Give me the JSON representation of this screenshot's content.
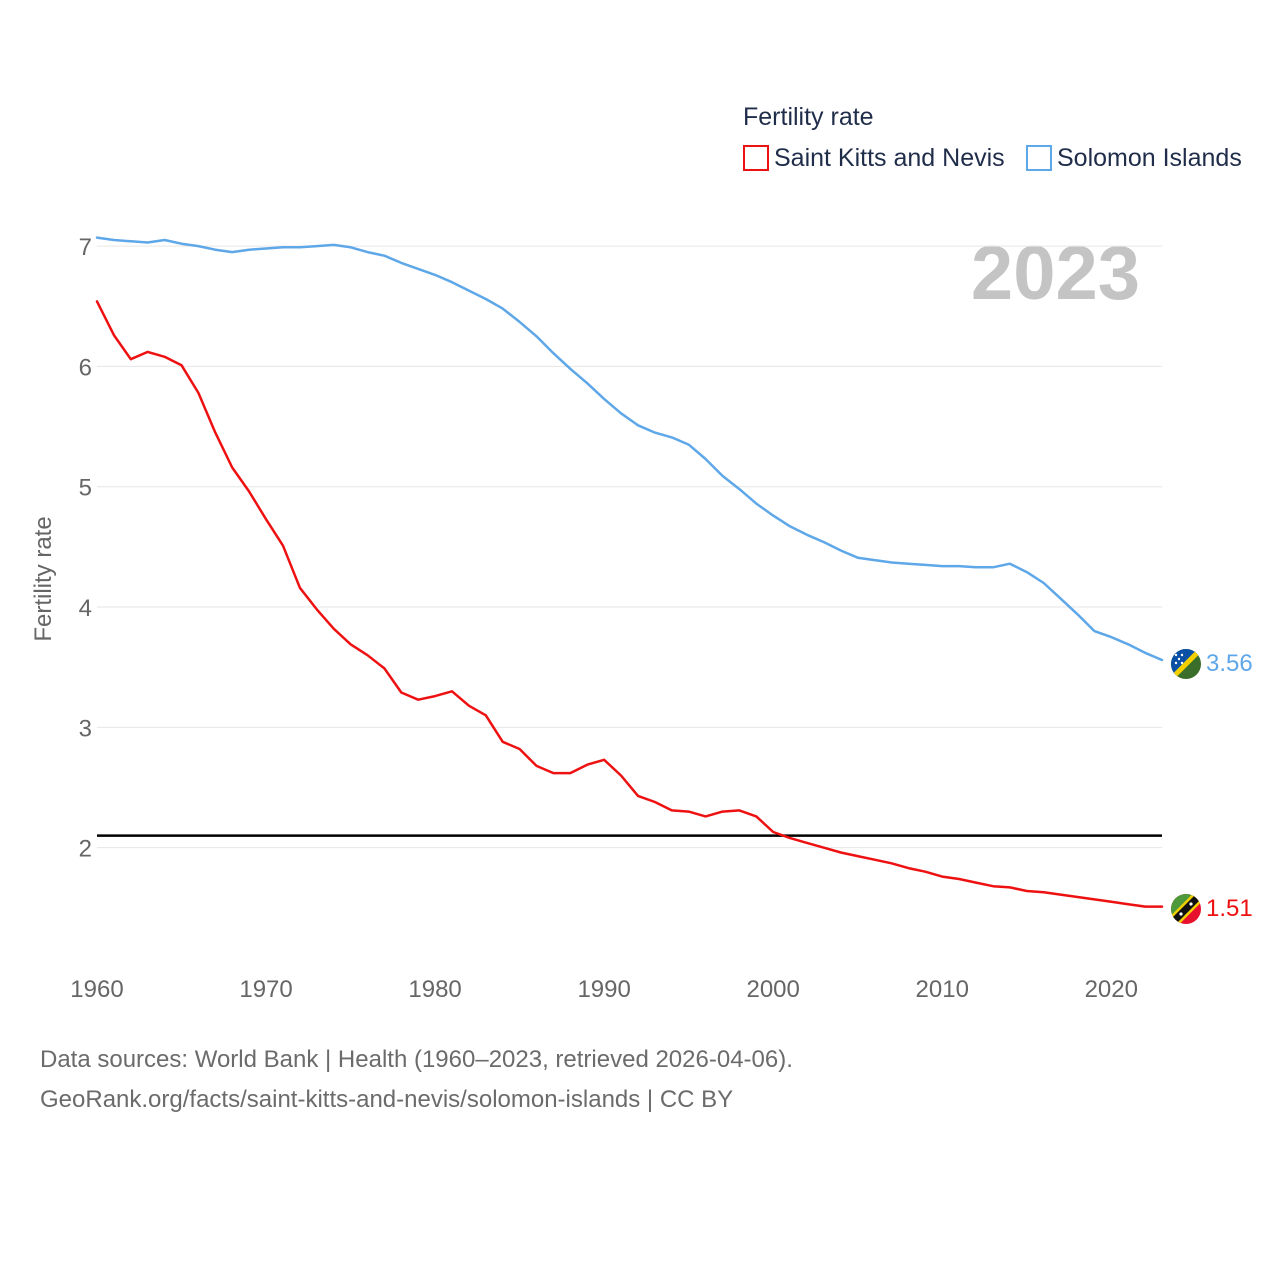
{
  "chart_data": {
    "type": "line",
    "legend_title": "Fertility rate",
    "ylabel": "Fertility rate",
    "year_label": "2023",
    "x_ticks": [
      1960,
      1970,
      1980,
      1990,
      2000,
      2010,
      2020
    ],
    "y_ticks": [
      2,
      3,
      4,
      5,
      6,
      7
    ],
    "xlim": [
      1960,
      2023
    ],
    "ylim": [
      1.0,
      7.2
    ],
    "reference_line": {
      "value": 2.1,
      "color": "#000000"
    },
    "legend_position": "top-right",
    "grid": true,
    "series": [
      {
        "name": "Saint Kitts and Nevis",
        "color": "#ee1111",
        "end_label": "1.51",
        "icon": "saint-kitts-and-nevis-flag-icon",
        "x": [
          1960,
          1961,
          1962,
          1963,
          1964,
          1965,
          1966,
          1967,
          1968,
          1969,
          1970,
          1971,
          1972,
          1973,
          1974,
          1975,
          1976,
          1977,
          1978,
          1979,
          1980,
          1981,
          1982,
          1983,
          1984,
          1985,
          1986,
          1987,
          1988,
          1989,
          1990,
          1991,
          1992,
          1993,
          1994,
          1995,
          1996,
          1997,
          1998,
          1999,
          2000,
          2001,
          2002,
          2003,
          2004,
          2005,
          2006,
          2007,
          2008,
          2009,
          2010,
          2011,
          2012,
          2013,
          2014,
          2015,
          2016,
          2017,
          2018,
          2019,
          2020,
          2021,
          2022,
          2023
        ],
        "values": [
          6.54,
          6.26,
          6.06,
          6.12,
          6.08,
          6.01,
          5.78,
          5.45,
          5.16,
          4.96,
          4.73,
          4.51,
          4.16,
          3.98,
          3.82,
          3.69,
          3.6,
          3.49,
          3.29,
          3.23,
          3.26,
          3.3,
          3.18,
          3.1,
          2.88,
          2.82,
          2.68,
          2.62,
          2.62,
          2.69,
          2.73,
          2.6,
          2.43,
          2.38,
          2.31,
          2.3,
          2.26,
          2.3,
          2.31,
          2.26,
          2.13,
          2.08,
          2.04,
          2.0,
          1.96,
          1.93,
          1.9,
          1.87,
          1.83,
          1.8,
          1.76,
          1.74,
          1.71,
          1.68,
          1.67,
          1.64,
          1.63,
          1.61,
          1.59,
          1.57,
          1.55,
          1.53,
          1.51,
          1.51
        ]
      },
      {
        "name": "Solomon Islands",
        "color": "#5ea7e8",
        "end_label": "3.56",
        "icon": "solomon-islands-flag-icon",
        "x": [
          1960,
          1961,
          1962,
          1963,
          1964,
          1965,
          1966,
          1967,
          1968,
          1969,
          1970,
          1971,
          1972,
          1973,
          1974,
          1975,
          1976,
          1977,
          1978,
          1979,
          1980,
          1981,
          1982,
          1983,
          1984,
          1985,
          1986,
          1987,
          1988,
          1989,
          1990,
          1991,
          1992,
          1993,
          1994,
          1995,
          1996,
          1997,
          1998,
          1999,
          2000,
          2001,
          2002,
          2003,
          2004,
          2005,
          2006,
          2007,
          2008,
          2009,
          2010,
          2011,
          2012,
          2013,
          2014,
          2015,
          2016,
          2017,
          2018,
          2019,
          2020,
          2021,
          2022,
          2023
        ],
        "values": [
          7.07,
          7.05,
          7.04,
          7.03,
          7.05,
          7.02,
          7.0,
          6.97,
          6.95,
          6.97,
          6.98,
          6.99,
          6.99,
          7.0,
          7.01,
          6.99,
          6.95,
          6.92,
          6.86,
          6.81,
          6.76,
          6.7,
          6.63,
          6.56,
          6.48,
          6.37,
          6.25,
          6.11,
          5.98,
          5.86,
          5.73,
          5.61,
          5.51,
          5.45,
          5.41,
          5.35,
          5.23,
          5.09,
          4.98,
          4.86,
          4.76,
          4.67,
          4.6,
          4.54,
          4.47,
          4.41,
          4.39,
          4.37,
          4.36,
          4.35,
          4.34,
          4.34,
          4.33,
          4.33,
          4.36,
          4.29,
          4.2,
          4.07,
          3.94,
          3.8,
          3.75,
          3.69,
          3.62,
          3.56
        ]
      }
    ]
  },
  "source": {
    "line1": "Data sources: World Bank | Health (1960–2023, retrieved 2026-04-06).",
    "line2": "GeoRank.org/facts/saint-kitts-and-nevis/solomon-islands | CC BY"
  }
}
